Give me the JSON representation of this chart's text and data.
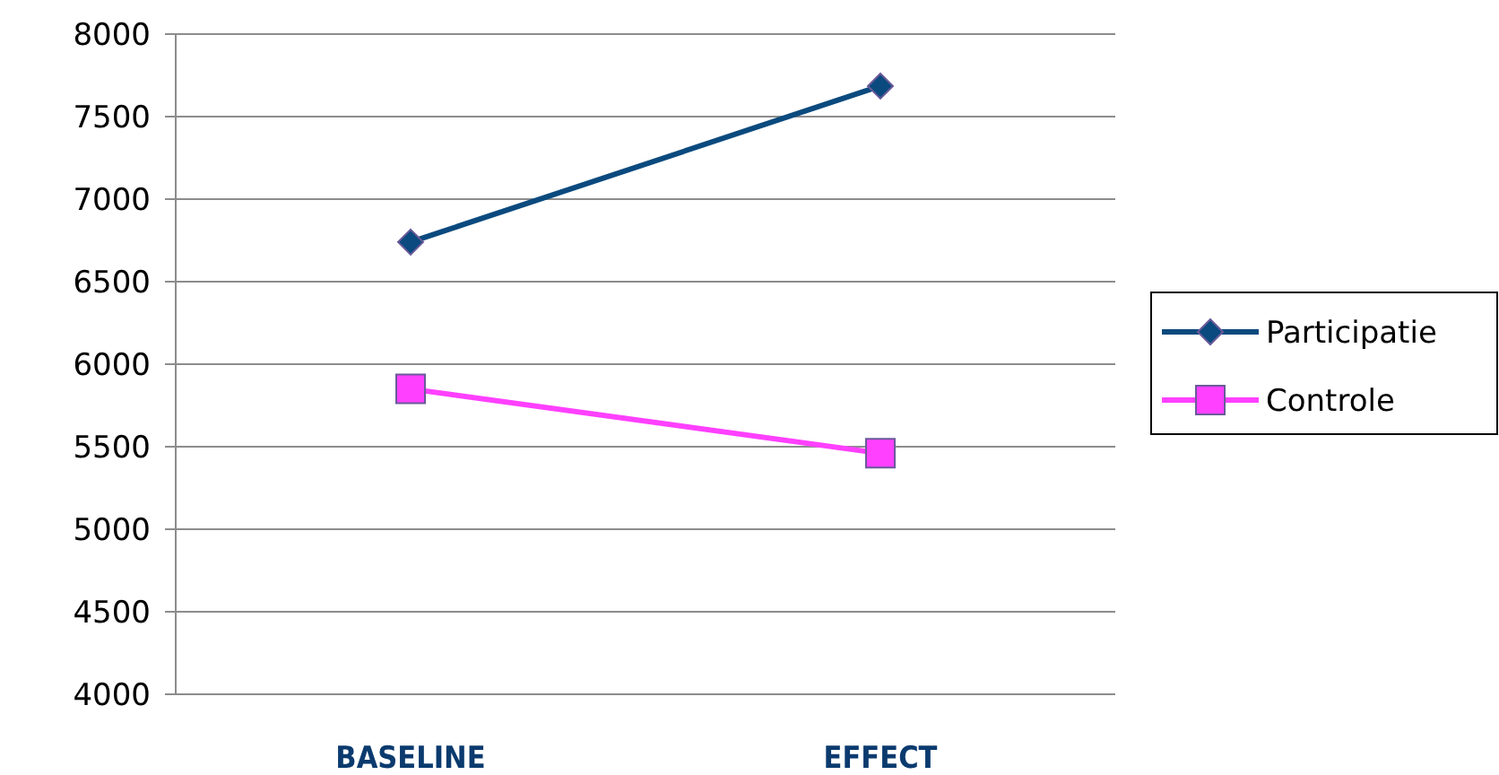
{
  "chart_data": {
    "type": "line",
    "categories": [
      "BASELINE",
      "EFFECT"
    ],
    "series": [
      {
        "name": "Participatie",
        "color": "#0b4a7e",
        "values": [
          6740,
          7685
        ],
        "marker": "diamond"
      },
      {
        "name": "Controle",
        "color": "#ff40ff",
        "values": [
          5850,
          5460
        ],
        "marker": "square"
      }
    ],
    "ylim": [
      4000,
      8000
    ],
    "yticks": [
      4000,
      4500,
      5000,
      5500,
      6000,
      6500,
      7000,
      7500,
      8000
    ],
    "grid": "y",
    "legend": "right"
  }
}
